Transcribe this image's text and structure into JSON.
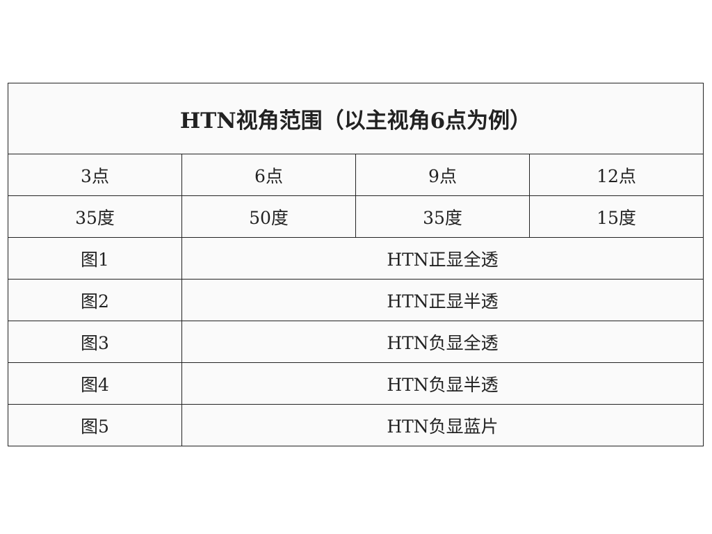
{
  "title": "HTN视角范围（以主视角6点为例）",
  "positions": [
    "3点",
    "6点",
    "9点",
    "12点"
  ],
  "angles": [
    "35度",
    "50度",
    "35度",
    "15度"
  ],
  "figures": [
    {
      "label": "图1",
      "description": "HTN正显全透"
    },
    {
      "label": "图2",
      "description": "HTN正显半透"
    },
    {
      "label": "图3",
      "description": "HTN负显全透"
    },
    {
      "label": "图4",
      "description": "HTN负显半透"
    },
    {
      "label": "图5",
      "description": "HTN负显蓝片"
    }
  ]
}
